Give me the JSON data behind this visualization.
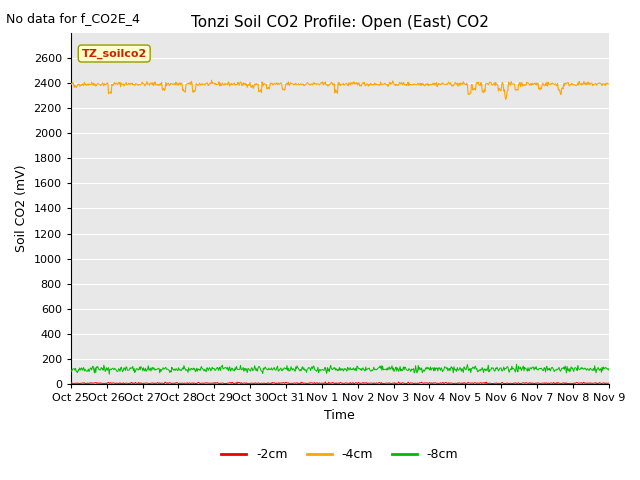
{
  "title": "Tonzi Soil CO2 Profile: Open (East) CO2",
  "no_data_label": "No data for f_CO2E_4",
  "ylabel": "Soil CO2 (mV)",
  "xlabel": "Time",
  "annotation_label": "TZ_soilco2",
  "plot_bg_color": "#e8e8e8",
  "fig_bg_color": "#ffffff",
  "ylim": [
    0,
    2800
  ],
  "yticks": [
    0,
    200,
    400,
    600,
    800,
    1000,
    1200,
    1400,
    1600,
    1800,
    2000,
    2200,
    2400,
    2600
  ],
  "xtick_labels": [
    "Oct 25",
    "Oct 26",
    "Oct 27",
    "Oct 28",
    "Oct 29",
    "Oct 30",
    "Oct 31",
    "Nov 1",
    "Nov 2",
    "Nov 3",
    "Nov 4",
    "Nov 5",
    "Nov 6",
    "Nov 7",
    "Nov 8",
    "Nov 9"
  ],
  "num_points": 800,
  "orange_mean": 2390,
  "orange_noise": 8,
  "green_mean": 120,
  "green_noise": 12,
  "red_mean": 5,
  "red_noise": 4,
  "orange_color": "#FFA500",
  "green_color": "#00BB00",
  "red_color": "#EE0000",
  "legend_labels": [
    "-2cm",
    "-4cm",
    "-8cm"
  ],
  "grid_color": "#ffffff",
  "title_fontsize": 11,
  "label_fontsize": 9,
  "tick_fontsize": 8,
  "annot_fontsize": 8,
  "no_data_fontsize": 9
}
